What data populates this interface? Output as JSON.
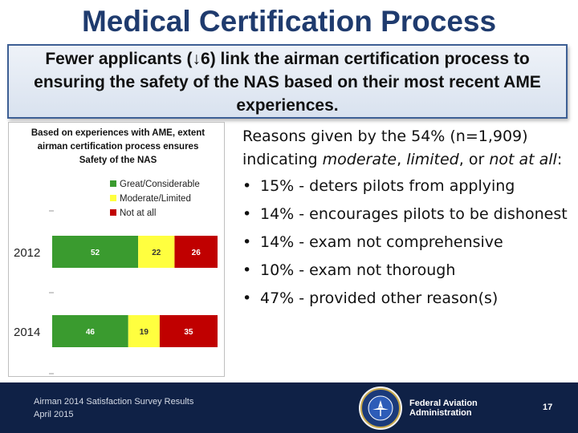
{
  "title": "Medical Certification Process",
  "subtitle": {
    "before_arrow": "Fewer applicants (",
    "arrow": "↓",
    "after_arrow": "6) link the airman certification process to ensuring the safety of the NAS based on their most recent AME experiences."
  },
  "chart_data": {
    "type": "bar",
    "orientation": "horizontal",
    "stacked": true,
    "title": "Based on experiences with AME, extent airman certification process ensures Safety of the NAS",
    "categories": [
      "2012",
      "2014"
    ],
    "series": [
      {
        "name": "Great/Considerable",
        "color": "#3a9b2f",
        "values": [
          52,
          46
        ]
      },
      {
        "name": "Moderate/Limited",
        "color": "#ffff3f",
        "values": [
          22,
          19
        ]
      },
      {
        "name": "Not at all",
        "color": "#c00000",
        "values": [
          26,
          35
        ]
      }
    ],
    "xlim": [
      0,
      100
    ],
    "legend_position": "top-right"
  },
  "reasons": {
    "intro_plain": "Reasons given by the 54% (n=1,909) indicating ",
    "intro_em1": "moderate",
    "intro_sep1": ", ",
    "intro_em2": "limited",
    "intro_sep2": ", or ",
    "intro_em3": "not at all",
    "intro_end": ":",
    "bullet_glyph": "•",
    "items": [
      "15% - deters pilots from applying",
      "14% - encourages pilots to be dishonest",
      "14% - exam not comprehensive",
      "10% - exam not thorough",
      "47% - provided other reason(s)"
    ]
  },
  "footer": {
    "line1": "Airman 2014 Satisfaction Survey Results",
    "line2": "April 2015",
    "org_line1": "Federal Aviation",
    "org_line2": "Administration",
    "page": "17",
    "seal_icon": "faa-seal-icon"
  }
}
